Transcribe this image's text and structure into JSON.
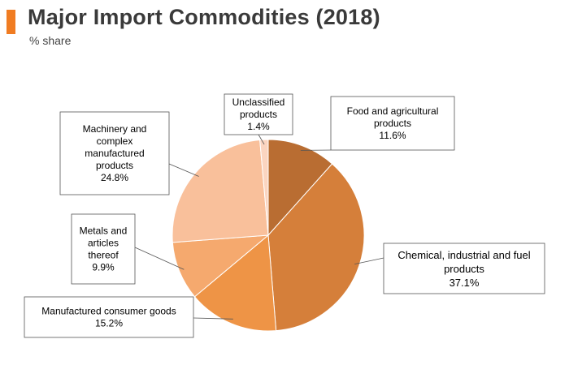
{
  "header": {
    "title": "Major Import Commodities (2018)",
    "subtitle": "% share",
    "accent_color": "#f07c22"
  },
  "chart_data": {
    "type": "pie",
    "title": "Major Import Commodities (2018)",
    "subtitle": "% share",
    "slices": [
      {
        "label": "Food and agricultural products",
        "label_lines": [
          "Food and agricultural",
          "products"
        ],
        "value_text": "11.6%",
        "value": 11.6,
        "color": "#b96d32"
      },
      {
        "label": "Chemical, industrial and fuel products",
        "label_lines": [
          "Chemical, industrial and fuel",
          "products"
        ],
        "value_text": "37.1%",
        "value": 37.1,
        "color": "#d57f3a"
      },
      {
        "label": "Manufactured consumer goods",
        "label_lines": [
          "Manufactured consumer goods"
        ],
        "value_text": "15.2%",
        "value": 15.2,
        "color": "#ee9446"
      },
      {
        "label": "Metals and articles thereof",
        "label_lines": [
          "Metals and",
          "articles",
          "thereof"
        ],
        "value_text": "9.9%",
        "value": 9.9,
        "color": "#f5a96e"
      },
      {
        "label": "Machinery and complex manufactured products",
        "label_lines": [
          "Machinery and",
          "complex",
          "manufactured",
          "products"
        ],
        "value_text": "24.8%",
        "value": 24.8,
        "color": "#f9c09b"
      },
      {
        "label": "Unclassified products",
        "label_lines": [
          "Unclassified",
          "products"
        ],
        "value_text": "1.4%",
        "value": 1.4,
        "color": "#fbd5c0"
      }
    ]
  }
}
